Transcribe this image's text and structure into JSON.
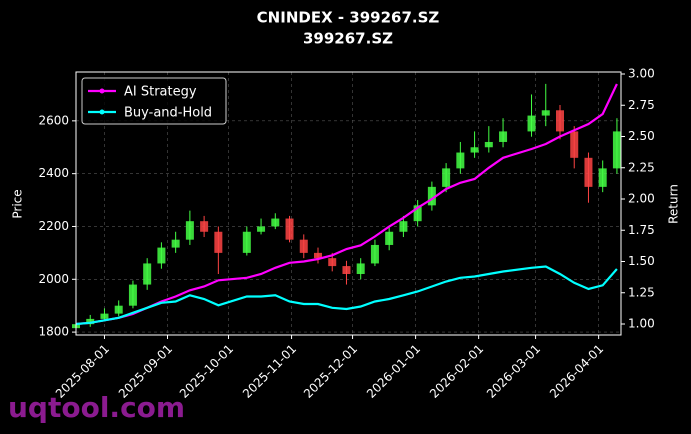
{
  "chart_data": {
    "type": "candlestick",
    "title": "CNINDEX - 399267.SZ",
    "subtitle": "399267.SZ",
    "y_label": "Price",
    "y2_label": "Return",
    "watermark": "uqtool.com",
    "x": [
      "2025-07-18",
      "2025-07-25",
      "2025-08-01",
      "2025-08-08",
      "2025-08-15",
      "2025-08-22",
      "2025-08-29",
      "2025-09-05",
      "2025-09-12",
      "2025-09-19",
      "2025-09-26",
      "2025-10-10",
      "2025-10-17",
      "2025-10-24",
      "2025-10-31",
      "2025-11-07",
      "2025-11-14",
      "2025-11-21",
      "2025-11-28",
      "2025-12-05",
      "2025-12-12",
      "2025-12-19",
      "2025-12-26",
      "2026-01-02",
      "2026-01-09",
      "2026-01-16",
      "2026-01-23",
      "2026-01-30",
      "2026-02-06",
      "2026-02-13",
      "2026-02-27",
      "2026-03-06",
      "2026-03-13",
      "2026-03-20",
      "2026-03-27",
      "2026-04-03",
      "2026-04-10"
    ],
    "open": [
      1815,
      1830,
      1850,
      1870,
      1900,
      1980,
      2060,
      2120,
      2150,
      2220,
      2180,
      2100,
      2180,
      2200,
      2230,
      2150,
      2100,
      2080,
      2050,
      2020,
      2060,
      2130,
      2180,
      2220,
      2280,
      2350,
      2420,
      2480,
      2500,
      2520,
      2560,
      2620,
      2640,
      2560,
      2460,
      2350,
      2420
    ],
    "high": [
      1845,
      1865,
      1890,
      1920,
      1995,
      2080,
      2140,
      2180,
      2260,
      2240,
      2200,
      2200,
      2230,
      2250,
      2240,
      2170,
      2120,
      2100,
      2070,
      2080,
      2150,
      2200,
      2240,
      2300,
      2370,
      2440,
      2520,
      2560,
      2580,
      2610,
      2700,
      2740,
      2660,
      2580,
      2480,
      2450,
      2610
    ],
    "low": [
      1800,
      1820,
      1840,
      1860,
      1890,
      1960,
      2040,
      2100,
      2130,
      2160,
      2020,
      2090,
      2170,
      2190,
      2140,
      2080,
      2060,
      2030,
      1980,
      2000,
      2050,
      2110,
      2160,
      2200,
      2260,
      2330,
      2400,
      2460,
      2480,
      2500,
      2540,
      2580,
      2530,
      2420,
      2290,
      2330,
      2400
    ],
    "close": [
      1830,
      1850,
      1870,
      1900,
      1980,
      2060,
      2120,
      2150,
      2220,
      2180,
      2100,
      2180,
      2200,
      2230,
      2150,
      2100,
      2080,
      2050,
      2020,
      2060,
      2130,
      2180,
      2220,
      2280,
      2350,
      2420,
      2480,
      2500,
      2520,
      2560,
      2620,
      2640,
      2560,
      2460,
      2350,
      2420,
      2560
    ],
    "up_color": "#44ff44",
    "down_color": "#ff4444",
    "series": [
      {
        "name": "AI Strategy",
        "color": "#ff00ff",
        "axis": "y2",
        "values": [
          1.0,
          1.01,
          1.03,
          1.05,
          1.08,
          1.13,
          1.18,
          1.22,
          1.27,
          1.3,
          1.35,
          1.37,
          1.4,
          1.45,
          1.49,
          1.5,
          1.52,
          1.55,
          1.6,
          1.63,
          1.7,
          1.78,
          1.85,
          1.93,
          2.0,
          2.08,
          2.13,
          2.16,
          2.25,
          2.33,
          2.4,
          2.44,
          2.5,
          2.55,
          2.6,
          2.68,
          2.92
        ]
      },
      {
        "name": "Buy-and-Hold",
        "color": "#00ffff",
        "axis": "y2",
        "values": [
          1.0,
          1.01,
          1.03,
          1.05,
          1.09,
          1.13,
          1.17,
          1.18,
          1.23,
          1.2,
          1.15,
          1.22,
          1.22,
          1.23,
          1.18,
          1.16,
          1.16,
          1.13,
          1.12,
          1.14,
          1.18,
          1.2,
          1.23,
          1.26,
          1.3,
          1.34,
          1.37,
          1.38,
          1.4,
          1.42,
          1.45,
          1.46,
          1.4,
          1.33,
          1.28,
          1.31,
          1.44
        ]
      }
    ],
    "xlim": [
      "2025-07-18",
      "2026-04-12"
    ],
    "xticks": [
      "2025-08-01",
      "2025-09-01",
      "2025-10-01",
      "2025-11-01",
      "2025-12-01",
      "2026-01-01",
      "2026-02-01",
      "2026-03-01",
      "2026-04-01"
    ],
    "ylim": [
      1789,
      2785
    ],
    "yticks": [
      1800,
      2000,
      2200,
      2400,
      2600
    ],
    "y2lim": [
      0.912,
      3.016
    ],
    "y2ticks": [
      {
        "value": 1,
        "label": "1.00"
      },
      1.25,
      {
        "value": 1.5,
        "label": "1.50"
      },
      1.75,
      {
        "value": 2,
        "label": "2.00"
      },
      2.25,
      {
        "value": 2.5,
        "label": "2.50"
      },
      2.75,
      {
        "value": 3,
        "label": "3.00"
      }
    ],
    "grid": true,
    "legend": "upper left"
  }
}
